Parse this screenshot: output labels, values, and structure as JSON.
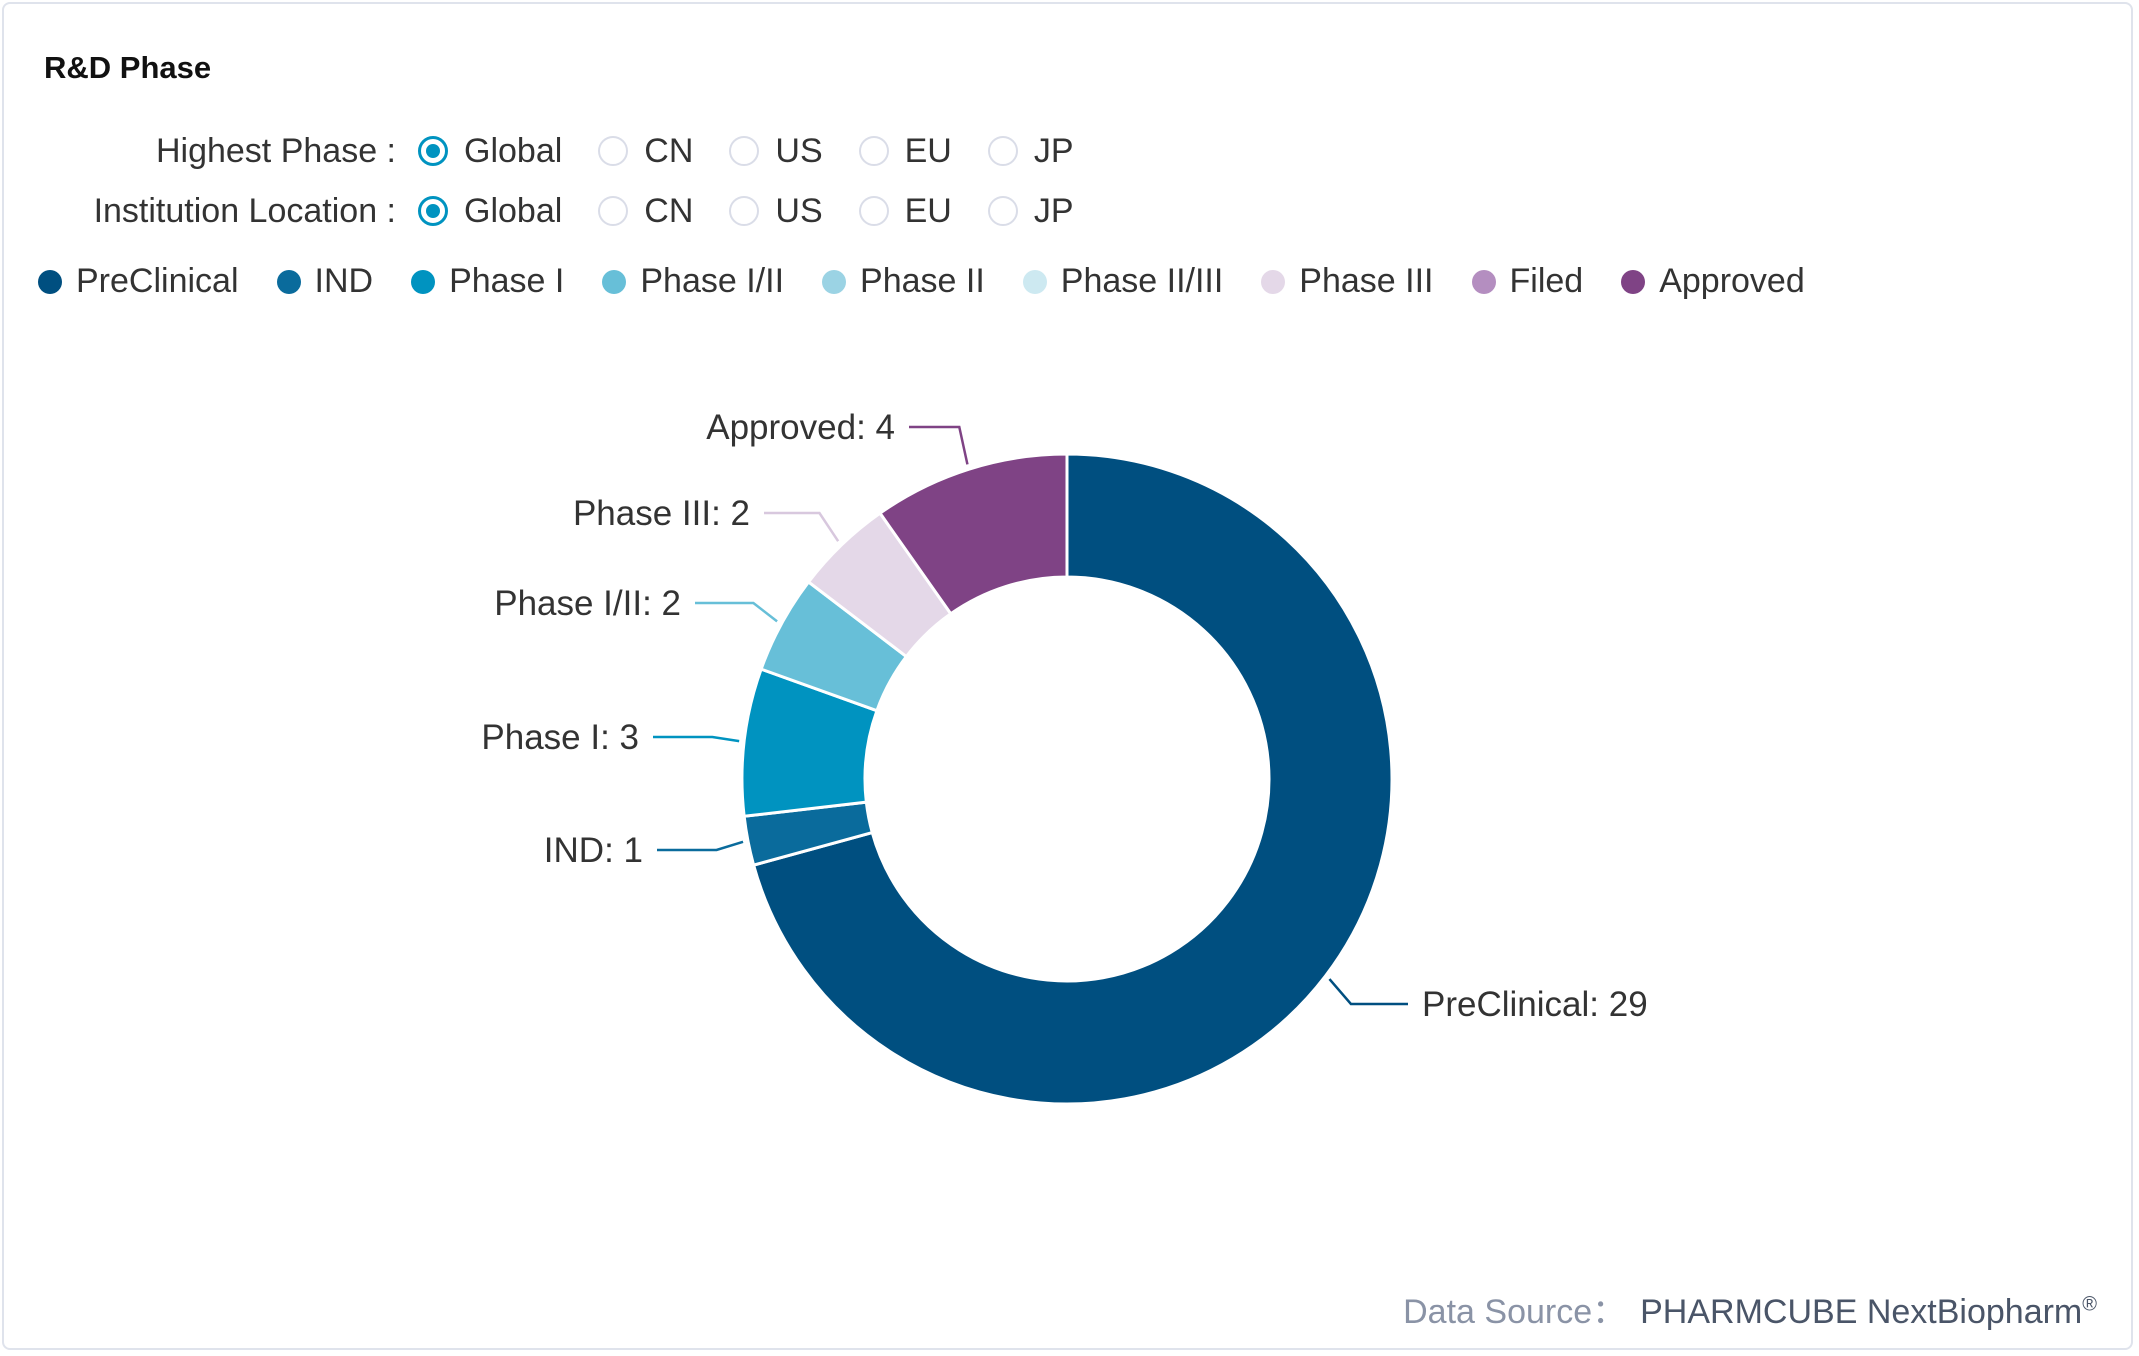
{
  "title": "R&D Phase",
  "filters": [
    {
      "label": "Highest Phase :",
      "options": [
        "Global",
        "CN",
        "US",
        "EU",
        "JP"
      ],
      "selected": "Global"
    },
    {
      "label": "Institution Location :",
      "options": [
        "Global",
        "CN",
        "US",
        "EU",
        "JP"
      ],
      "selected": "Global"
    }
  ],
  "chart_data": {
    "type": "pie",
    "donut": true,
    "legend_position": "top-left",
    "legend": [
      {
        "name": "PreClinical",
        "color": "#004f80"
      },
      {
        "name": "IND",
        "color": "#0a6b9c"
      },
      {
        "name": "Phase I",
        "color": "#0093c0"
      },
      {
        "name": "Phase I/II",
        "color": "#67bfd8"
      },
      {
        "name": "Phase II",
        "color": "#9bd3e4"
      },
      {
        "name": "Phase II/III",
        "color": "#cde9f1"
      },
      {
        "name": "Phase III",
        "color": "#e4d8e8"
      },
      {
        "name": "Filed",
        "color": "#b48ec0"
      },
      {
        "name": "Approved",
        "color": "#7f4385"
      }
    ],
    "slices": [
      {
        "name": "PreClinical",
        "value": 29,
        "color": "#004f80",
        "label": "PreClinical: 29"
      },
      {
        "name": "IND",
        "value": 1,
        "color": "#0a6b9c",
        "label": "IND: 1"
      },
      {
        "name": "Phase I",
        "value": 3,
        "color": "#0093c0",
        "label": "Phase I: 3"
      },
      {
        "name": "Phase I/II",
        "value": 2,
        "color": "#67bfd8",
        "label": "Phase I/II: 2"
      },
      {
        "name": "Phase III",
        "value": 2,
        "color": "#e4d8e8",
        "label": "Phase III: 2"
      },
      {
        "name": "Approved",
        "value": 4,
        "color": "#7f4385",
        "label": "Approved: 4"
      }
    ]
  },
  "footer": {
    "prefix": "Data Source：",
    "brand": "PHARMCUBE NextBiopharm",
    "mark": "®"
  }
}
